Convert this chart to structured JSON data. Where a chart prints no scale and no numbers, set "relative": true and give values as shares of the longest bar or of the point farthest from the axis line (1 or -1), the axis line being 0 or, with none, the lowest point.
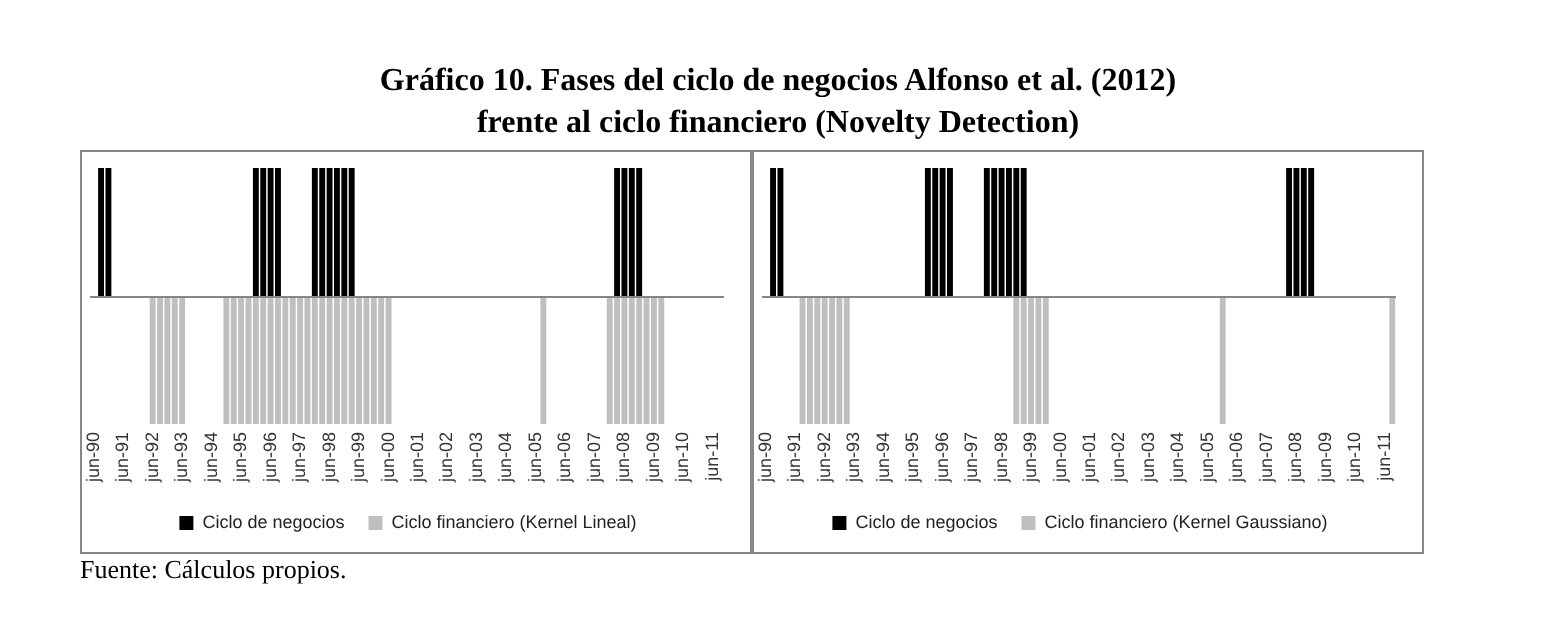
{
  "chart_data": [
    {
      "type": "bar",
      "title": "Gráfico 10. Fases del ciclo de negocios Alfonso et al. (2012)\nfrente al ciclo financiero (Novelty Detection)",
      "relative": true,
      "stacked": true,
      "legend": "bottom",
      "annotations": [
        "Fuente: Cálculos propios."
      ],
      "categories": [
        "jun-90",
        null,
        null,
        null,
        "jun-91",
        null,
        null,
        null,
        "jun-92",
        null,
        null,
        null,
        "jun-93",
        null,
        null,
        null,
        "jun-94",
        null,
        null,
        null,
        "jun-95",
        null,
        null,
        null,
        "jun-96",
        null,
        null,
        null,
        "jun-97",
        null,
        null,
        null,
        "jun-98",
        null,
        null,
        null,
        "jun-99",
        null,
        null,
        null,
        "jun-00",
        null,
        null,
        null,
        "jun-01",
        null,
        null,
        null,
        "jun-02",
        null,
        null,
        null,
        "jun-03",
        null,
        null,
        null,
        "jun-04",
        null,
        null,
        null,
        "jun-05",
        null,
        null,
        null,
        "jun-06",
        null,
        null,
        null,
        "jun-07",
        null,
        null,
        null,
        "jun-08",
        null,
        null,
        null,
        "jun-09",
        null,
        null,
        null,
        "jun-10",
        null,
        null,
        null,
        "jun-11",
        null
      ],
      "series": [
        {
          "name": "Ciclo de negocios",
          "color": "#000000",
          "values": [
            null,
            1,
            1,
            null,
            null,
            null,
            null,
            null,
            null,
            null,
            null,
            null,
            null,
            null,
            null,
            null,
            null,
            null,
            null,
            null,
            null,
            null,
            1,
            1,
            1,
            1,
            null,
            null,
            null,
            null,
            1,
            1,
            1,
            1,
            1,
            1,
            null,
            null,
            null,
            null,
            null,
            null,
            null,
            null,
            null,
            null,
            null,
            null,
            null,
            null,
            null,
            null,
            null,
            null,
            null,
            null,
            null,
            null,
            null,
            null,
            null,
            null,
            null,
            null,
            null,
            null,
            null,
            null,
            null,
            null,
            null,
            1,
            1,
            1,
            1,
            null,
            null,
            null,
            null,
            null,
            null,
            null,
            null,
            null,
            null,
            null
          ]
        },
        {
          "name": "Ciclo financiero (Kernel Lineal)",
          "color": "#bfbfbf",
          "values": [
            null,
            null,
            null,
            null,
            null,
            null,
            null,
            null,
            -1,
            -1,
            -1,
            -1,
            -1,
            null,
            null,
            null,
            null,
            null,
            -1,
            -1,
            -1,
            -1,
            -1,
            -1,
            -1,
            -1,
            -1,
            -1,
            -1,
            -1,
            -1,
            -1,
            -1,
            -1,
            -1,
            -1,
            -1,
            -1,
            -1,
            -1,
            -1,
            null,
            null,
            null,
            null,
            null,
            null,
            null,
            null,
            null,
            null,
            null,
            null,
            null,
            null,
            null,
            null,
            null,
            null,
            null,
            null,
            -1,
            null,
            null,
            null,
            null,
            null,
            null,
            null,
            null,
            -1,
            -1,
            -1,
            -1,
            -1,
            -1,
            -1,
            -1,
            null,
            null,
            null,
            null,
            null,
            null,
            null,
            null
          ]
        }
      ]
    },
    {
      "type": "bar",
      "relative": true,
      "stacked": true,
      "legend": "bottom",
      "categories": [
        "jun-90",
        null,
        null,
        null,
        "jun-91",
        null,
        null,
        null,
        "jun-92",
        null,
        null,
        null,
        "jun-93",
        null,
        null,
        null,
        "jun-94",
        null,
        null,
        null,
        "jun-95",
        null,
        null,
        null,
        "jun-96",
        null,
        null,
        null,
        "jun-97",
        null,
        null,
        null,
        "jun-98",
        null,
        null,
        null,
        "jun-99",
        null,
        null,
        null,
        "jun-00",
        null,
        null,
        null,
        "jun-01",
        null,
        null,
        null,
        "jun-02",
        null,
        null,
        null,
        "jun-03",
        null,
        null,
        null,
        "jun-04",
        null,
        null,
        null,
        "jun-05",
        null,
        null,
        null,
        "jun-06",
        null,
        null,
        null,
        "jun-07",
        null,
        null,
        null,
        "jun-08",
        null,
        null,
        null,
        "jun-09",
        null,
        null,
        null,
        "jun-10",
        null,
        null,
        null,
        "jun-11",
        null
      ],
      "series": [
        {
          "name": "Ciclo de negocios",
          "color": "#000000",
          "values": [
            null,
            1,
            1,
            null,
            null,
            null,
            null,
            null,
            null,
            null,
            null,
            null,
            null,
            null,
            null,
            null,
            null,
            null,
            null,
            null,
            null,
            null,
            1,
            1,
            1,
            1,
            null,
            null,
            null,
            null,
            1,
            1,
            1,
            1,
            1,
            1,
            null,
            null,
            null,
            null,
            null,
            null,
            null,
            null,
            null,
            null,
            null,
            null,
            null,
            null,
            null,
            null,
            null,
            null,
            null,
            null,
            null,
            null,
            null,
            null,
            null,
            null,
            null,
            null,
            null,
            null,
            null,
            null,
            null,
            null,
            null,
            1,
            1,
            1,
            1,
            null,
            null,
            null,
            null,
            null,
            null,
            null,
            null,
            null,
            null,
            null
          ]
        },
        {
          "name": "Ciclo financiero (Kernel Gaussiano)",
          "color": "#bfbfbf",
          "values": [
            null,
            null,
            null,
            null,
            null,
            -1,
            -1,
            -1,
            -1,
            -1,
            -1,
            -1,
            null,
            null,
            null,
            null,
            null,
            null,
            null,
            null,
            null,
            null,
            null,
            null,
            null,
            null,
            null,
            null,
            null,
            null,
            null,
            null,
            null,
            null,
            -1,
            -1,
            -1,
            -1,
            -1,
            null,
            null,
            null,
            null,
            null,
            null,
            null,
            null,
            null,
            null,
            null,
            null,
            null,
            null,
            null,
            null,
            null,
            null,
            null,
            null,
            null,
            null,
            null,
            -1,
            null,
            null,
            null,
            null,
            null,
            null,
            null,
            null,
            null,
            null,
            null,
            null,
            null,
            null,
            null,
            null,
            null,
            null,
            null,
            null,
            null,
            null,
            -1
          ]
        }
      ]
    }
  ]
}
